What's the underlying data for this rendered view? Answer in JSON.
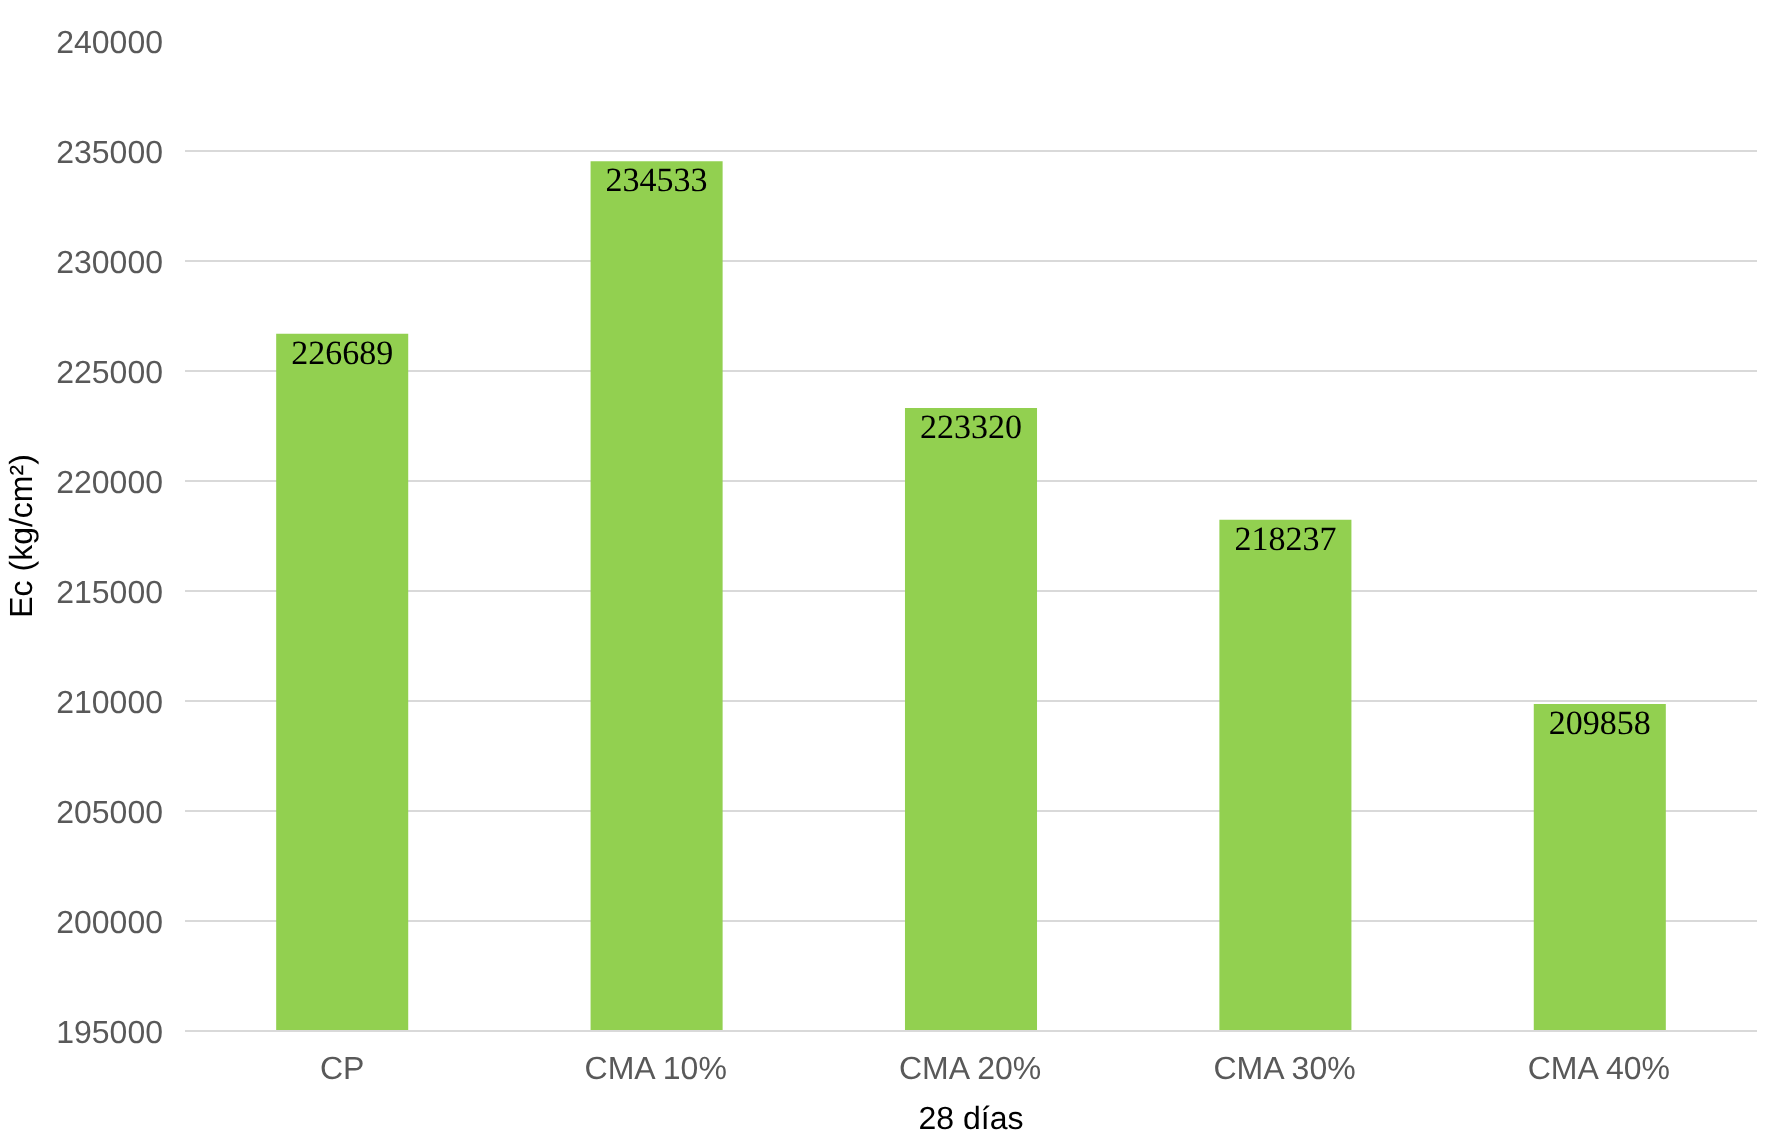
{
  "chart_data": {
    "type": "bar",
    "xlabel": "28 días",
    "ylabel": "Ec (kg/cm²)",
    "categories": [
      "CP",
      "CMA 10%",
      "CMA 20%",
      "CMA 30%",
      "CMA 40%"
    ],
    "values": [
      226689,
      234533,
      223320,
      218237,
      209858
    ],
    "color": "#92d050",
    "ylim": [
      195000,
      240000
    ],
    "yticks": [
      195000,
      200000,
      205000,
      210000,
      215000,
      220000,
      225000,
      230000,
      235000,
      240000
    ],
    "grid": "y",
    "data_labels": true
  }
}
